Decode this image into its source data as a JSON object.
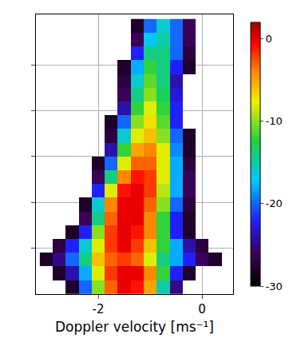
{
  "chart_data": {
    "type": "heatmap",
    "x_label": "Doppler velocity [ms⁻¹]",
    "x": [
      -3.0,
      -2.75,
      -2.5,
      -2.25,
      -2.0,
      -1.75,
      -1.5,
      -1.25,
      -1.0,
      -0.75,
      -0.5,
      -0.25,
      0,
      0.25,
      0.5
    ],
    "y": [
      0.15,
      0.45,
      0.75,
      1.05,
      1.35,
      1.65,
      1.95,
      2.25,
      2.55,
      2.85,
      3.15,
      3.45,
      3.75,
      4.05,
      4.35,
      4.65,
      4.95,
      5.25,
      5.55,
      5.85
    ],
    "z": [
      [
        null,
        null,
        -28,
        -20,
        -10,
        -3,
        0,
        -1,
        -5,
        -15,
        -25,
        null,
        null,
        null,
        null
      ],
      [
        null,
        -28,
        -24,
        -18,
        -8,
        -2,
        0,
        0,
        -4,
        -12,
        -22,
        -28,
        null,
        null,
        null
      ],
      [
        -28,
        -25,
        -20,
        -14,
        -6,
        -3,
        -2,
        -3,
        -8,
        -14,
        -18,
        -22,
        -26,
        -28,
        null
      ],
      [
        null,
        -27,
        -22,
        -16,
        -8,
        -2,
        0,
        -2,
        -6,
        -12,
        -18,
        -24,
        -27,
        null,
        null
      ],
      [
        null,
        null,
        -28,
        -22,
        -10,
        -2,
        0,
        -1,
        -4,
        -12,
        -22,
        -28,
        null,
        null,
        null
      ],
      [
        null,
        null,
        null,
        -26,
        -14,
        -3,
        0,
        0,
        -4,
        -12,
        -22,
        -28,
        null,
        null,
        null
      ],
      [
        null,
        null,
        null,
        -28,
        -16,
        -4,
        0,
        0,
        -3,
        -10,
        -20,
        -27,
        null,
        null,
        null
      ],
      [
        null,
        null,
        null,
        null,
        -22,
        -8,
        -1,
        0,
        -2,
        -9,
        -18,
        -26,
        null,
        null,
        null
      ],
      [
        null,
        null,
        null,
        null,
        -26,
        -14,
        -4,
        -1,
        -2,
        -8,
        -18,
        -26,
        null,
        null,
        null
      ],
      [
        null,
        null,
        null,
        null,
        -28,
        -20,
        -8,
        -3,
        -3,
        -8,
        -18,
        -27,
        null,
        null,
        null
      ],
      [
        null,
        null,
        null,
        null,
        null,
        -24,
        -12,
        -5,
        -4,
        -8,
        -19,
        -28,
        null,
        null,
        null
      ],
      [
        null,
        null,
        null,
        null,
        null,
        -27,
        -16,
        -8,
        -6,
        -10,
        -20,
        -28,
        null,
        null,
        null
      ],
      [
        null,
        null,
        null,
        null,
        null,
        -28,
        -20,
        -10,
        -7,
        -11,
        -22,
        null,
        null,
        null,
        null
      ],
      [
        null,
        null,
        null,
        null,
        null,
        null,
        -24,
        -12,
        -8,
        -12,
        -22,
        null,
        null,
        null,
        null
      ],
      [
        null,
        null,
        null,
        null,
        null,
        null,
        -26,
        -14,
        -10,
        -13,
        -23,
        null,
        null,
        null,
        null
      ],
      [
        null,
        null,
        null,
        null,
        null,
        null,
        -27,
        -16,
        -11,
        -14,
        -24,
        null,
        null,
        null,
        null
      ],
      [
        null,
        null,
        null,
        null,
        null,
        null,
        -28,
        -18,
        -12,
        -14,
        -22,
        -28,
        null,
        null,
        null
      ],
      [
        null,
        null,
        null,
        null,
        null,
        null,
        null,
        -22,
        -14,
        -14,
        -20,
        -27,
        null,
        null,
        null
      ],
      [
        null,
        null,
        null,
        null,
        null,
        null,
        null,
        -26,
        -17,
        -15,
        -20,
        -26,
        null,
        null,
        null
      ],
      [
        null,
        null,
        null,
        null,
        null,
        null,
        null,
        -28,
        -20,
        -16,
        -20,
        -26,
        null,
        null,
        null
      ]
    ],
    "xlim": [
      -3.2,
      0.6
    ],
    "xticks": [
      -2,
      0
    ],
    "ylim": [
      0,
      6.1
    ],
    "yticks": [
      1,
      2,
      3,
      4,
      5
    ],
    "colorbar_range": [
      -30,
      2
    ],
    "colorbar_ticks": [
      0,
      -10,
      -20,
      -30
    ],
    "grid": true,
    "tick_labels": "x"
  }
}
